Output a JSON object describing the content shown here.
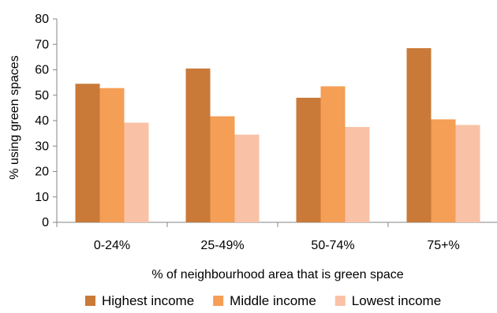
{
  "chart_data": {
    "type": "bar",
    "xlabel": "% of neighbourhood area that is green space",
    "ylabel": "% using green spaces",
    "ylim": [
      0,
      80
    ],
    "yticks": [
      0,
      10,
      20,
      30,
      40,
      50,
      60,
      70,
      80
    ],
    "grid": false,
    "legend_position": "bottom",
    "categories": [
      "0-24%",
      "25-49%",
      "50-74%",
      "75+%"
    ],
    "series": [
      {
        "name": "Highest income",
        "color": "#c97a38",
        "values": [
          54.5,
          60.5,
          49,
          68.5
        ]
      },
      {
        "name": "Middle income",
        "color": "#f59e55",
        "values": [
          52.8,
          41.7,
          53.5,
          40.5
        ]
      },
      {
        "name": "Lowest income",
        "color": "#f9c2a6",
        "values": [
          39.2,
          34.5,
          37.5,
          38.3
        ]
      }
    ]
  }
}
